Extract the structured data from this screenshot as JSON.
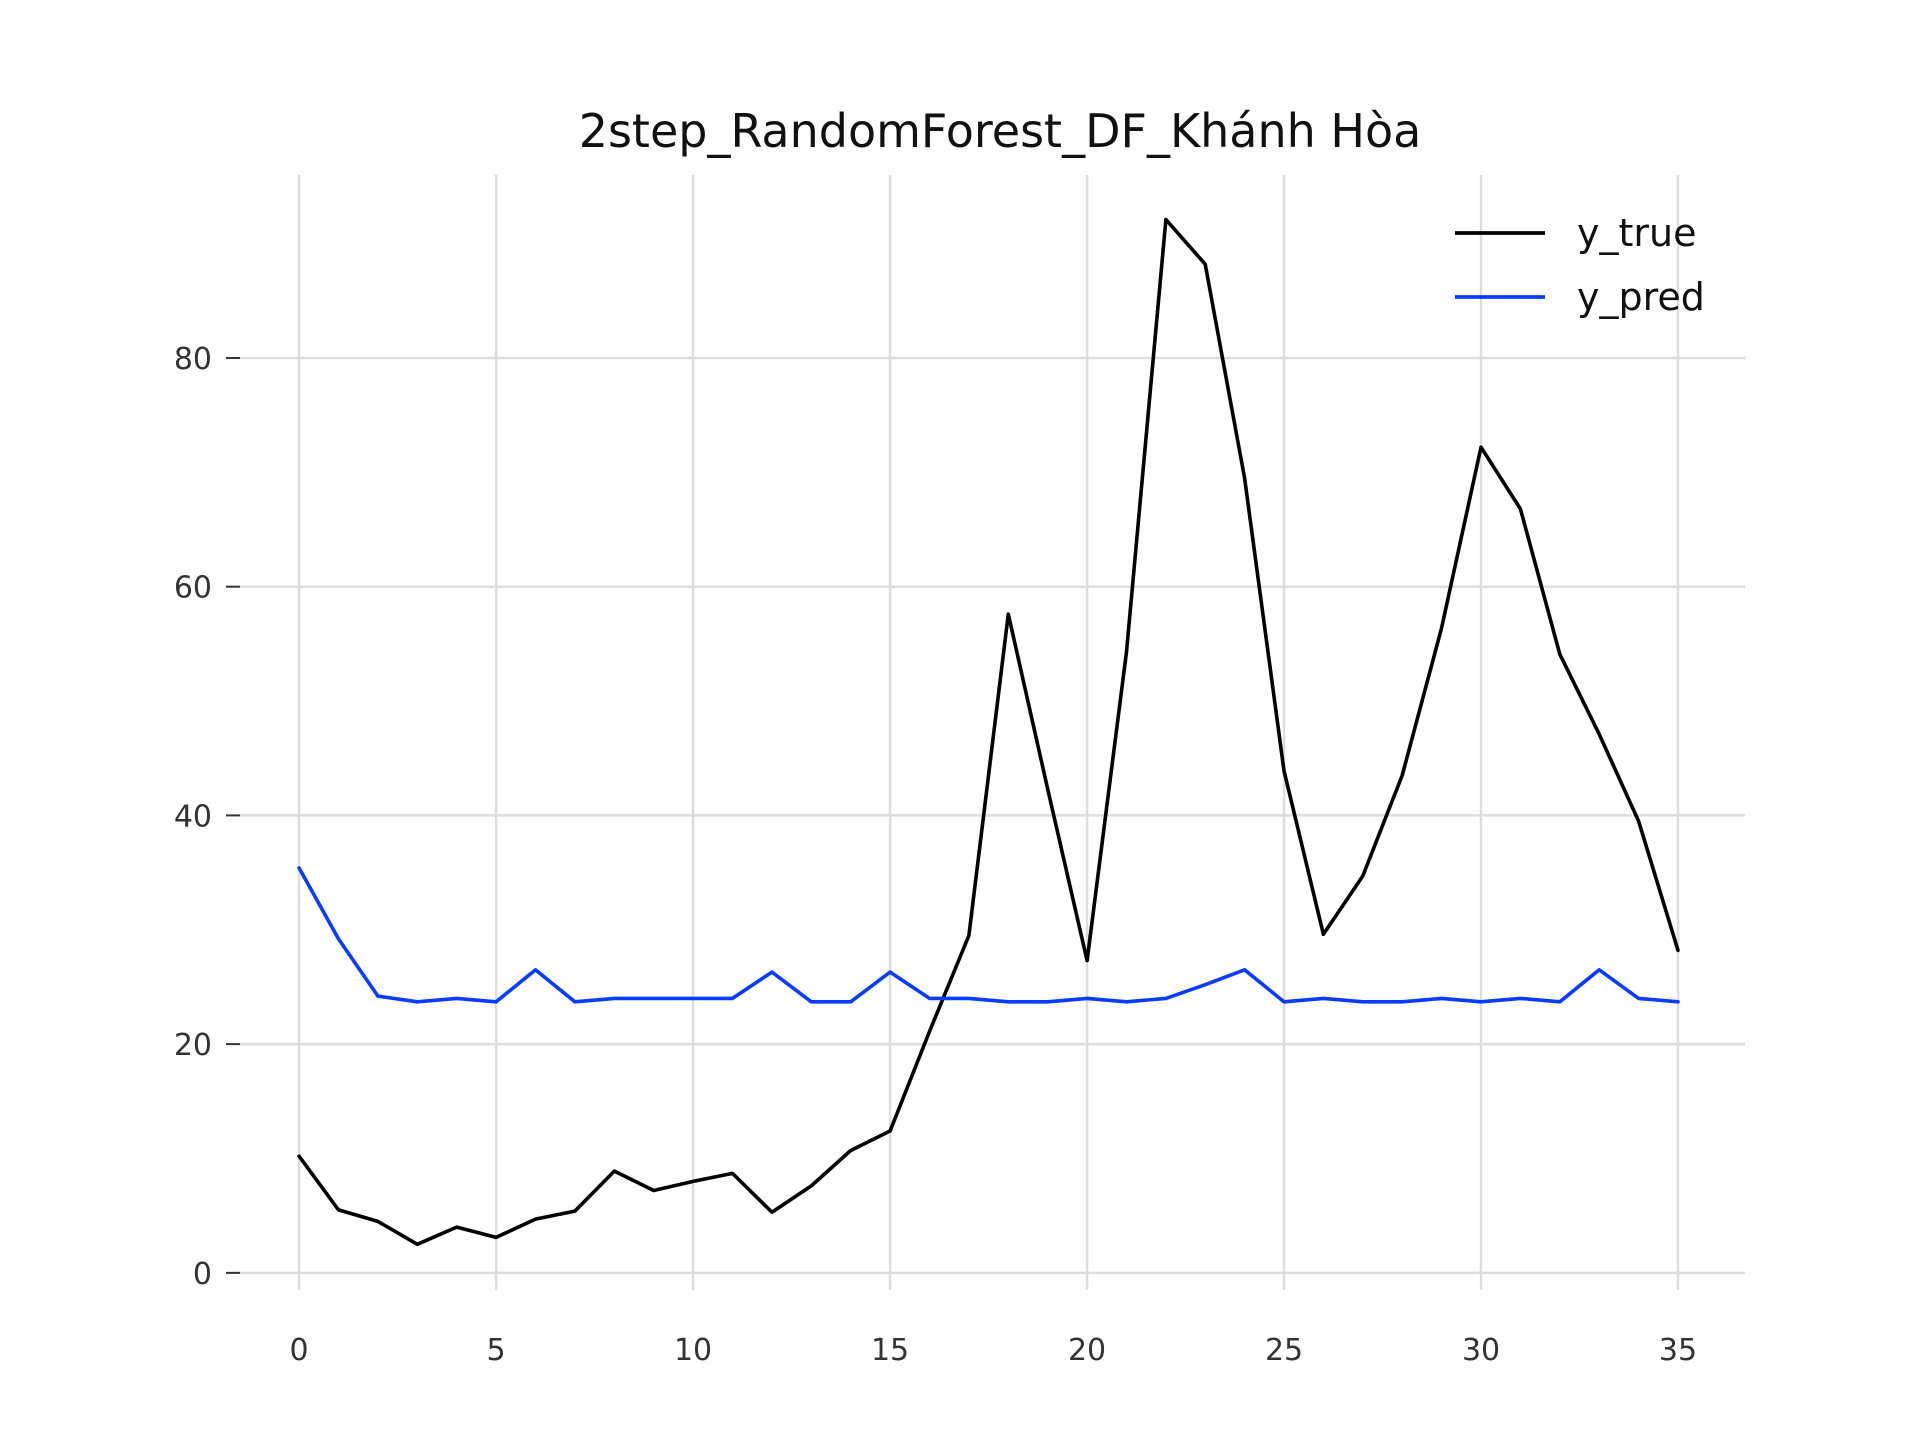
{
  "chart_data": {
    "type": "line",
    "title": "2step_RandomForest_DF_Khánh Hòa",
    "xlabel": "",
    "ylabel": "",
    "xlim": [
      -1.5,
      36.7
    ],
    "ylim": [
      -1.5,
      96
    ],
    "x": [
      0,
      1,
      2,
      3,
      4,
      5,
      6,
      7,
      8,
      9,
      10,
      11,
      12,
      13,
      14,
      15,
      16,
      17,
      18,
      19,
      20,
      21,
      22,
      23,
      24,
      25,
      26,
      27,
      28,
      29,
      30,
      31,
      32,
      33,
      34,
      35
    ],
    "x_ticks": [
      0,
      5,
      10,
      15,
      20,
      25,
      30,
      35
    ],
    "y_ticks": [
      0,
      20,
      40,
      60,
      80
    ],
    "grid": true,
    "legend_position": "top-right",
    "series": [
      {
        "name": "y_true",
        "color": "#000000",
        "values": [
          10.2,
          5.5,
          4.5,
          2.5,
          4.0,
          3.1,
          4.7,
          5.4,
          8.9,
          7.2,
          8.0,
          8.7,
          5.3,
          7.6,
          10.7,
          12.4,
          21.1,
          29.5,
          57.6,
          42.3,
          27.3,
          54.3,
          92.1,
          88.2,
          69.5,
          43.9,
          29.6,
          34.7,
          43.5,
          56.4,
          72.2,
          66.8,
          54.1,
          47.1,
          39.5,
          28.2
        ]
      },
      {
        "name": "y_pred",
        "color": "#0a3cff",
        "values": [
          35.4,
          29.2,
          24.2,
          23.7,
          24.0,
          23.7,
          26.5,
          23.7,
          24.0,
          24.0,
          24.0,
          24.0,
          26.3,
          23.7,
          23.7,
          26.3,
          24.0,
          24.0,
          23.7,
          23.7,
          24.0,
          23.7,
          24.0,
          25.2,
          26.5,
          23.7,
          24.0,
          23.7,
          23.7,
          24.0,
          23.7,
          24.0,
          23.7,
          26.5,
          24.0,
          23.7
        ]
      }
    ]
  }
}
